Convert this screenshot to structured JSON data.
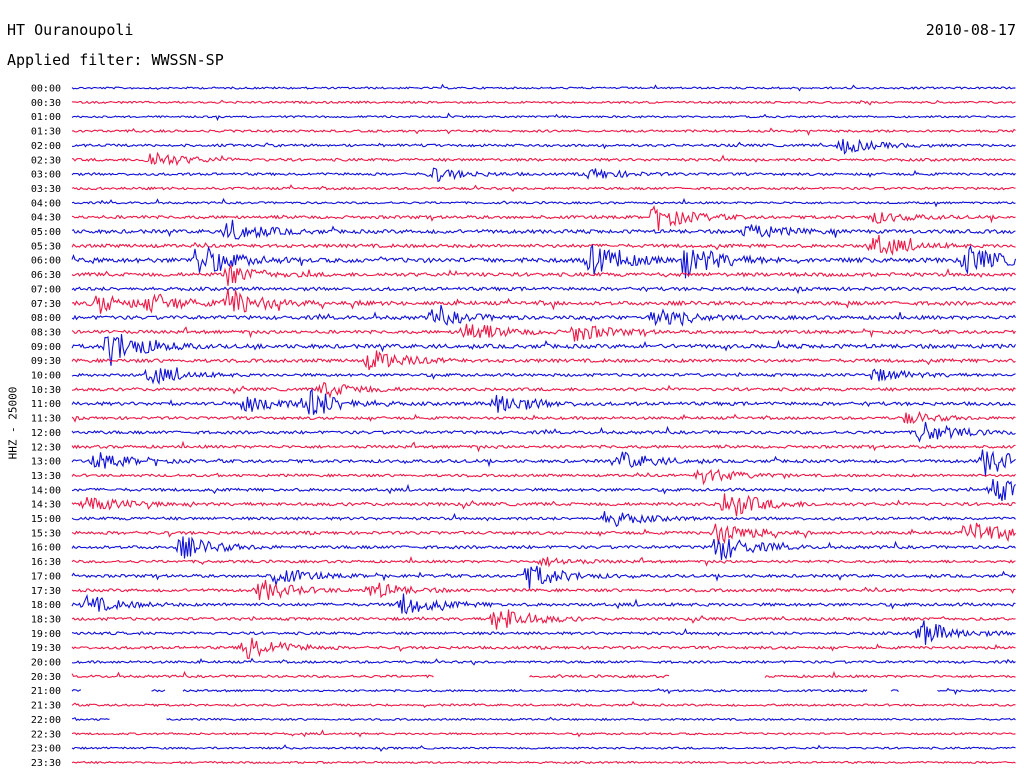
{
  "header": {
    "station": "HT Ouranoupoli",
    "date": "2010-08-17",
    "filter": "Applied filter: WWSSN-SP"
  },
  "colors": {
    "trace_a": "#1010d8",
    "trace_b": "#ee1846"
  },
  "chart_data": {
    "type": "helicorder",
    "ylabel": "HHZ - 25000",
    "row_interval_minutes": 30,
    "rows": [
      "00:00",
      "00:30",
      "01:00",
      "01:30",
      "02:00",
      "02:30",
      "03:00",
      "03:30",
      "04:00",
      "04:30",
      "05:00",
      "05:30",
      "06:00",
      "06:30",
      "07:00",
      "07:30",
      "08:00",
      "08:30",
      "09:00",
      "09:30",
      "10:00",
      "10:30",
      "11:00",
      "11:30",
      "12:00",
      "12:30",
      "13:00",
      "13:30",
      "14:00",
      "14:30",
      "15:00",
      "15:30",
      "16:00",
      "16:30",
      "17:00",
      "17:30",
      "18:00",
      "18:30",
      "19:00",
      "19:30",
      "20:00",
      "20:30",
      "21:00",
      "21:30",
      "22:00",
      "22:30",
      "23:00",
      "23:30"
    ],
    "color_cycle": [
      "trace_a",
      "trace_b"
    ],
    "activity": [
      0.15,
      0.2,
      0.15,
      0.25,
      0.35,
      0.4,
      0.35,
      0.3,
      0.2,
      0.5,
      0.7,
      0.6,
      0.95,
      0.7,
      0.6,
      0.75,
      0.7,
      0.55,
      0.8,
      0.6,
      0.45,
      0.5,
      0.6,
      0.4,
      0.5,
      0.45,
      0.5,
      0.35,
      0.45,
      0.55,
      0.45,
      0.5,
      0.5,
      0.35,
      0.45,
      0.45,
      0.5,
      0.45,
      0.4,
      0.4,
      0.3,
      0.3,
      0.2,
      0.2,
      0.15,
      0.15,
      0.15,
      0.15
    ],
    "events": [
      {
        "row": "02:00",
        "minute": 24.5,
        "size": 0.7
      },
      {
        "row": "02:30",
        "minute": 2.5,
        "size": 0.8
      },
      {
        "row": "03:00",
        "minute": 11.5,
        "size": 0.6
      },
      {
        "row": "03:00",
        "minute": 16.5,
        "size": 0.5
      },
      {
        "row": "04:30",
        "minute": 18.5,
        "size": 1.2
      },
      {
        "row": "04:30",
        "minute": 25.5,
        "size": 0.5
      },
      {
        "row": "05:00",
        "minute": 5.0,
        "size": 1.0
      },
      {
        "row": "05:00",
        "minute": 21.5,
        "size": 0.7
      },
      {
        "row": "05:30",
        "minute": 25.5,
        "size": 1.0
      },
      {
        "row": "06:00",
        "minute": 4.0,
        "size": 1.5
      },
      {
        "row": "06:00",
        "minute": 16.5,
        "size": 1.3
      },
      {
        "row": "06:00",
        "minute": 19.5,
        "size": 1.6
      },
      {
        "row": "06:00",
        "minute": 28.5,
        "size": 1.2
      },
      {
        "row": "06:30",
        "minute": 5.0,
        "size": 0.8
      },
      {
        "row": "07:30",
        "minute": 0.8,
        "size": 0.9
      },
      {
        "row": "07:30",
        "minute": 2.5,
        "size": 0.8
      },
      {
        "row": "07:30",
        "minute": 5.0,
        "size": 1.3
      },
      {
        "row": "08:00",
        "minute": 11.5,
        "size": 0.8
      },
      {
        "row": "08:00",
        "minute": 18.5,
        "size": 0.8
      },
      {
        "row": "08:30",
        "minute": 12.5,
        "size": 1.1
      },
      {
        "row": "08:30",
        "minute": 16.0,
        "size": 0.9
      },
      {
        "row": "09:00",
        "minute": 1.2,
        "size": 1.7
      },
      {
        "row": "09:30",
        "minute": 9.5,
        "size": 1.0
      },
      {
        "row": "10:00",
        "minute": 2.5,
        "size": 0.8
      },
      {
        "row": "10:00",
        "minute": 25.5,
        "size": 0.6
      },
      {
        "row": "10:30",
        "minute": 8.0,
        "size": 0.8
      },
      {
        "row": "11:00",
        "minute": 5.5,
        "size": 1.0
      },
      {
        "row": "11:00",
        "minute": 7.5,
        "size": 1.4
      },
      {
        "row": "11:00",
        "minute": 13.5,
        "size": 1.1
      },
      {
        "row": "11:30",
        "minute": 26.5,
        "size": 0.5
      },
      {
        "row": "12:00",
        "minute": 27.0,
        "size": 1.0
      },
      {
        "row": "13:00",
        "minute": 0.8,
        "size": 0.8
      },
      {
        "row": "13:00",
        "minute": 17.5,
        "size": 0.8
      },
      {
        "row": "13:00",
        "minute": 29.0,
        "size": 1.3
      },
      {
        "row": "13:30",
        "minute": 20.0,
        "size": 0.8
      },
      {
        "row": "14:00",
        "minute": 29.3,
        "size": 1.2
      },
      {
        "row": "14:30",
        "minute": 0.5,
        "size": 0.8
      },
      {
        "row": "14:30",
        "minute": 20.8,
        "size": 1.4
      },
      {
        "row": "15:00",
        "minute": 17.0,
        "size": 0.8
      },
      {
        "row": "15:30",
        "minute": 20.5,
        "size": 1.0
      },
      {
        "row": "15:30",
        "minute": 28.5,
        "size": 1.2
      },
      {
        "row": "16:00",
        "minute": 3.5,
        "size": 1.0
      },
      {
        "row": "16:00",
        "minute": 20.5,
        "size": 1.3
      },
      {
        "row": "16:30",
        "minute": 15.0,
        "size": 0.4
      },
      {
        "row": "17:00",
        "minute": 6.5,
        "size": 0.8
      },
      {
        "row": "17:00",
        "minute": 14.5,
        "size": 1.2
      },
      {
        "row": "17:30",
        "minute": 6.0,
        "size": 1.0
      },
      {
        "row": "17:30",
        "minute": 9.5,
        "size": 0.8
      },
      {
        "row": "18:00",
        "minute": 0.5,
        "size": 0.8
      },
      {
        "row": "18:00",
        "minute": 10.5,
        "size": 1.0
      },
      {
        "row": "18:30",
        "minute": 13.5,
        "size": 1.3
      },
      {
        "row": "19:00",
        "minute": 27.0,
        "size": 1.2
      },
      {
        "row": "19:30",
        "minute": 5.5,
        "size": 1.3
      }
    ],
    "gaps": [
      {
        "row": "20:30",
        "from": 11.5,
        "to": 14.5
      },
      {
        "row": "20:30",
        "from": 19.0,
        "to": 22.0
      },
      {
        "row": "21:00",
        "from": 0.3,
        "to": 2.5
      },
      {
        "row": "21:00",
        "from": 3.0,
        "to": 3.5
      },
      {
        "row": "21:00",
        "from": 25.3,
        "to": 26.0
      },
      {
        "row": "21:00",
        "from": 26.3,
        "to": 27.5
      },
      {
        "row": "22:00",
        "from": 1.2,
        "to": 3.0
      }
    ]
  }
}
